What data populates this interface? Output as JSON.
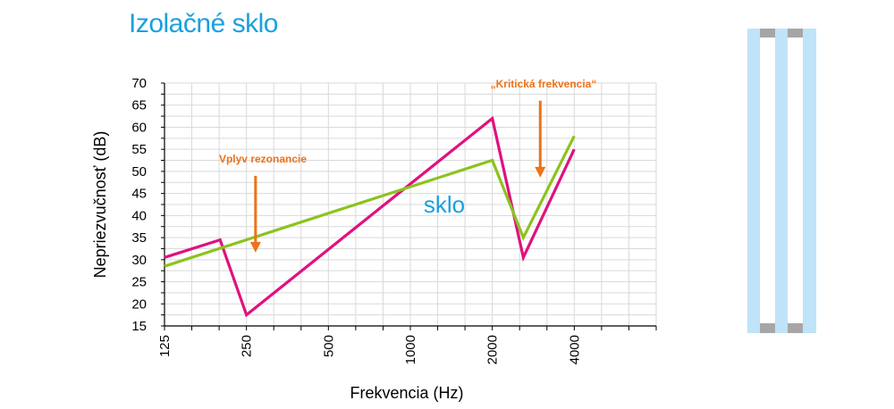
{
  "header": {
    "title": "Izolačné sklo"
  },
  "colors": {
    "title": "#1aa0de",
    "series_single": "#e0117f",
    "series_insulated": "#8dc21f",
    "annotation": "#ee7219",
    "series_label": "#1aa0de",
    "grid": "#d9d9d9",
    "glass_pane": "#bfe3f8",
    "spacer": "#a6a6a6"
  },
  "chart_data": {
    "type": "line",
    "title": "",
    "xlabel": "Frekvencia (Hz)",
    "ylabel": "Nepriezvučnosť (dB)",
    "x_scale": "log2",
    "xlim": [
      125,
      8000
    ],
    "ylim": [
      15,
      70
    ],
    "x_ticks": [
      125,
      250,
      500,
      1000,
      2000,
      4000
    ],
    "y_ticks": [
      15,
      20,
      25,
      30,
      35,
      40,
      45,
      50,
      55,
      60,
      65,
      70
    ],
    "grid": true,
    "series": [
      {
        "color_key": "series_single",
        "points": [
          [
            125,
            30.5
          ],
          [
            200,
            34.5
          ],
          [
            250,
            17.5
          ],
          [
            2000,
            62
          ],
          [
            2600,
            30.5
          ],
          [
            4000,
            55
          ]
        ]
      },
      {
        "name": "sklo",
        "color_key": "series_insulated",
        "points": [
          [
            125,
            28.5
          ],
          [
            2000,
            52.5
          ],
          [
            2600,
            35
          ],
          [
            4000,
            58
          ]
        ]
      }
    ],
    "annotations": [
      {
        "text": "Vplyv rezonancie",
        "arrow_x": 270,
        "arrow_y_from": 49,
        "arrow_y_to": 32
      },
      {
        "text": "„Kritická frekvencia“",
        "arrow_x": 3000,
        "arrow_y_from": 66,
        "arrow_y_to": 49
      }
    ]
  },
  "illustration": {
    "name": "glass-cross-section"
  }
}
